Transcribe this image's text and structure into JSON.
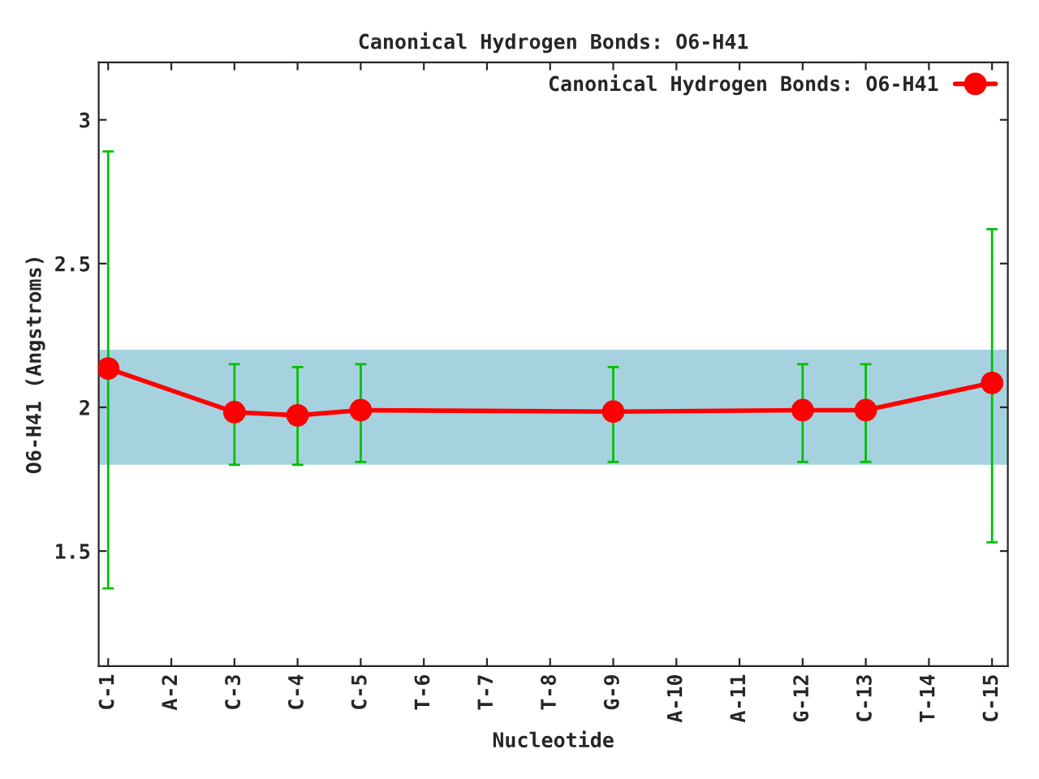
{
  "chart_data": {
    "type": "line",
    "title": "Canonical Hydrogen Bonds: O6-H41",
    "xlabel": "Nucleotide",
    "ylabel": "O6-H41 (Angstroms)",
    "categories": [
      "C-1",
      "A-2",
      "C-3",
      "C-4",
      "C-5",
      "T-6",
      "T-7",
      "T-8",
      "G-9",
      "A-10",
      "A-11",
      "G-12",
      "C-13",
      "T-14",
      "C-15"
    ],
    "series": [
      {
        "name": "Canonical Hydrogen Bonds: O6-H41",
        "color": "#ff0000",
        "values": [
          2.135,
          null,
          1.983,
          1.972,
          1.99,
          null,
          null,
          null,
          1.985,
          null,
          null,
          1.99,
          1.99,
          null,
          2.085
        ],
        "errors": [
          [
            1.37,
            2.89
          ],
          null,
          [
            1.8,
            2.15
          ],
          [
            1.8,
            2.14
          ],
          [
            1.81,
            2.15
          ],
          null,
          null,
          null,
          [
            1.81,
            2.14
          ],
          null,
          null,
          [
            1.81,
            2.15
          ],
          [
            1.81,
            2.15
          ],
          null,
          [
            1.53,
            2.62
          ]
        ]
      }
    ],
    "bands": [
      {
        "axis": "y",
        "from": 1.8,
        "to": 2.2,
        "color": "#a6d2e0"
      }
    ],
    "ylim": [
      1.1,
      3.2
    ],
    "yticks": [
      1.5,
      2,
      {
        "value": 2.5,
        "label": "2.5"
      },
      3
    ],
    "marker": "circle",
    "line_style": "solid",
    "legend": "top right",
    "grid": false
  }
}
